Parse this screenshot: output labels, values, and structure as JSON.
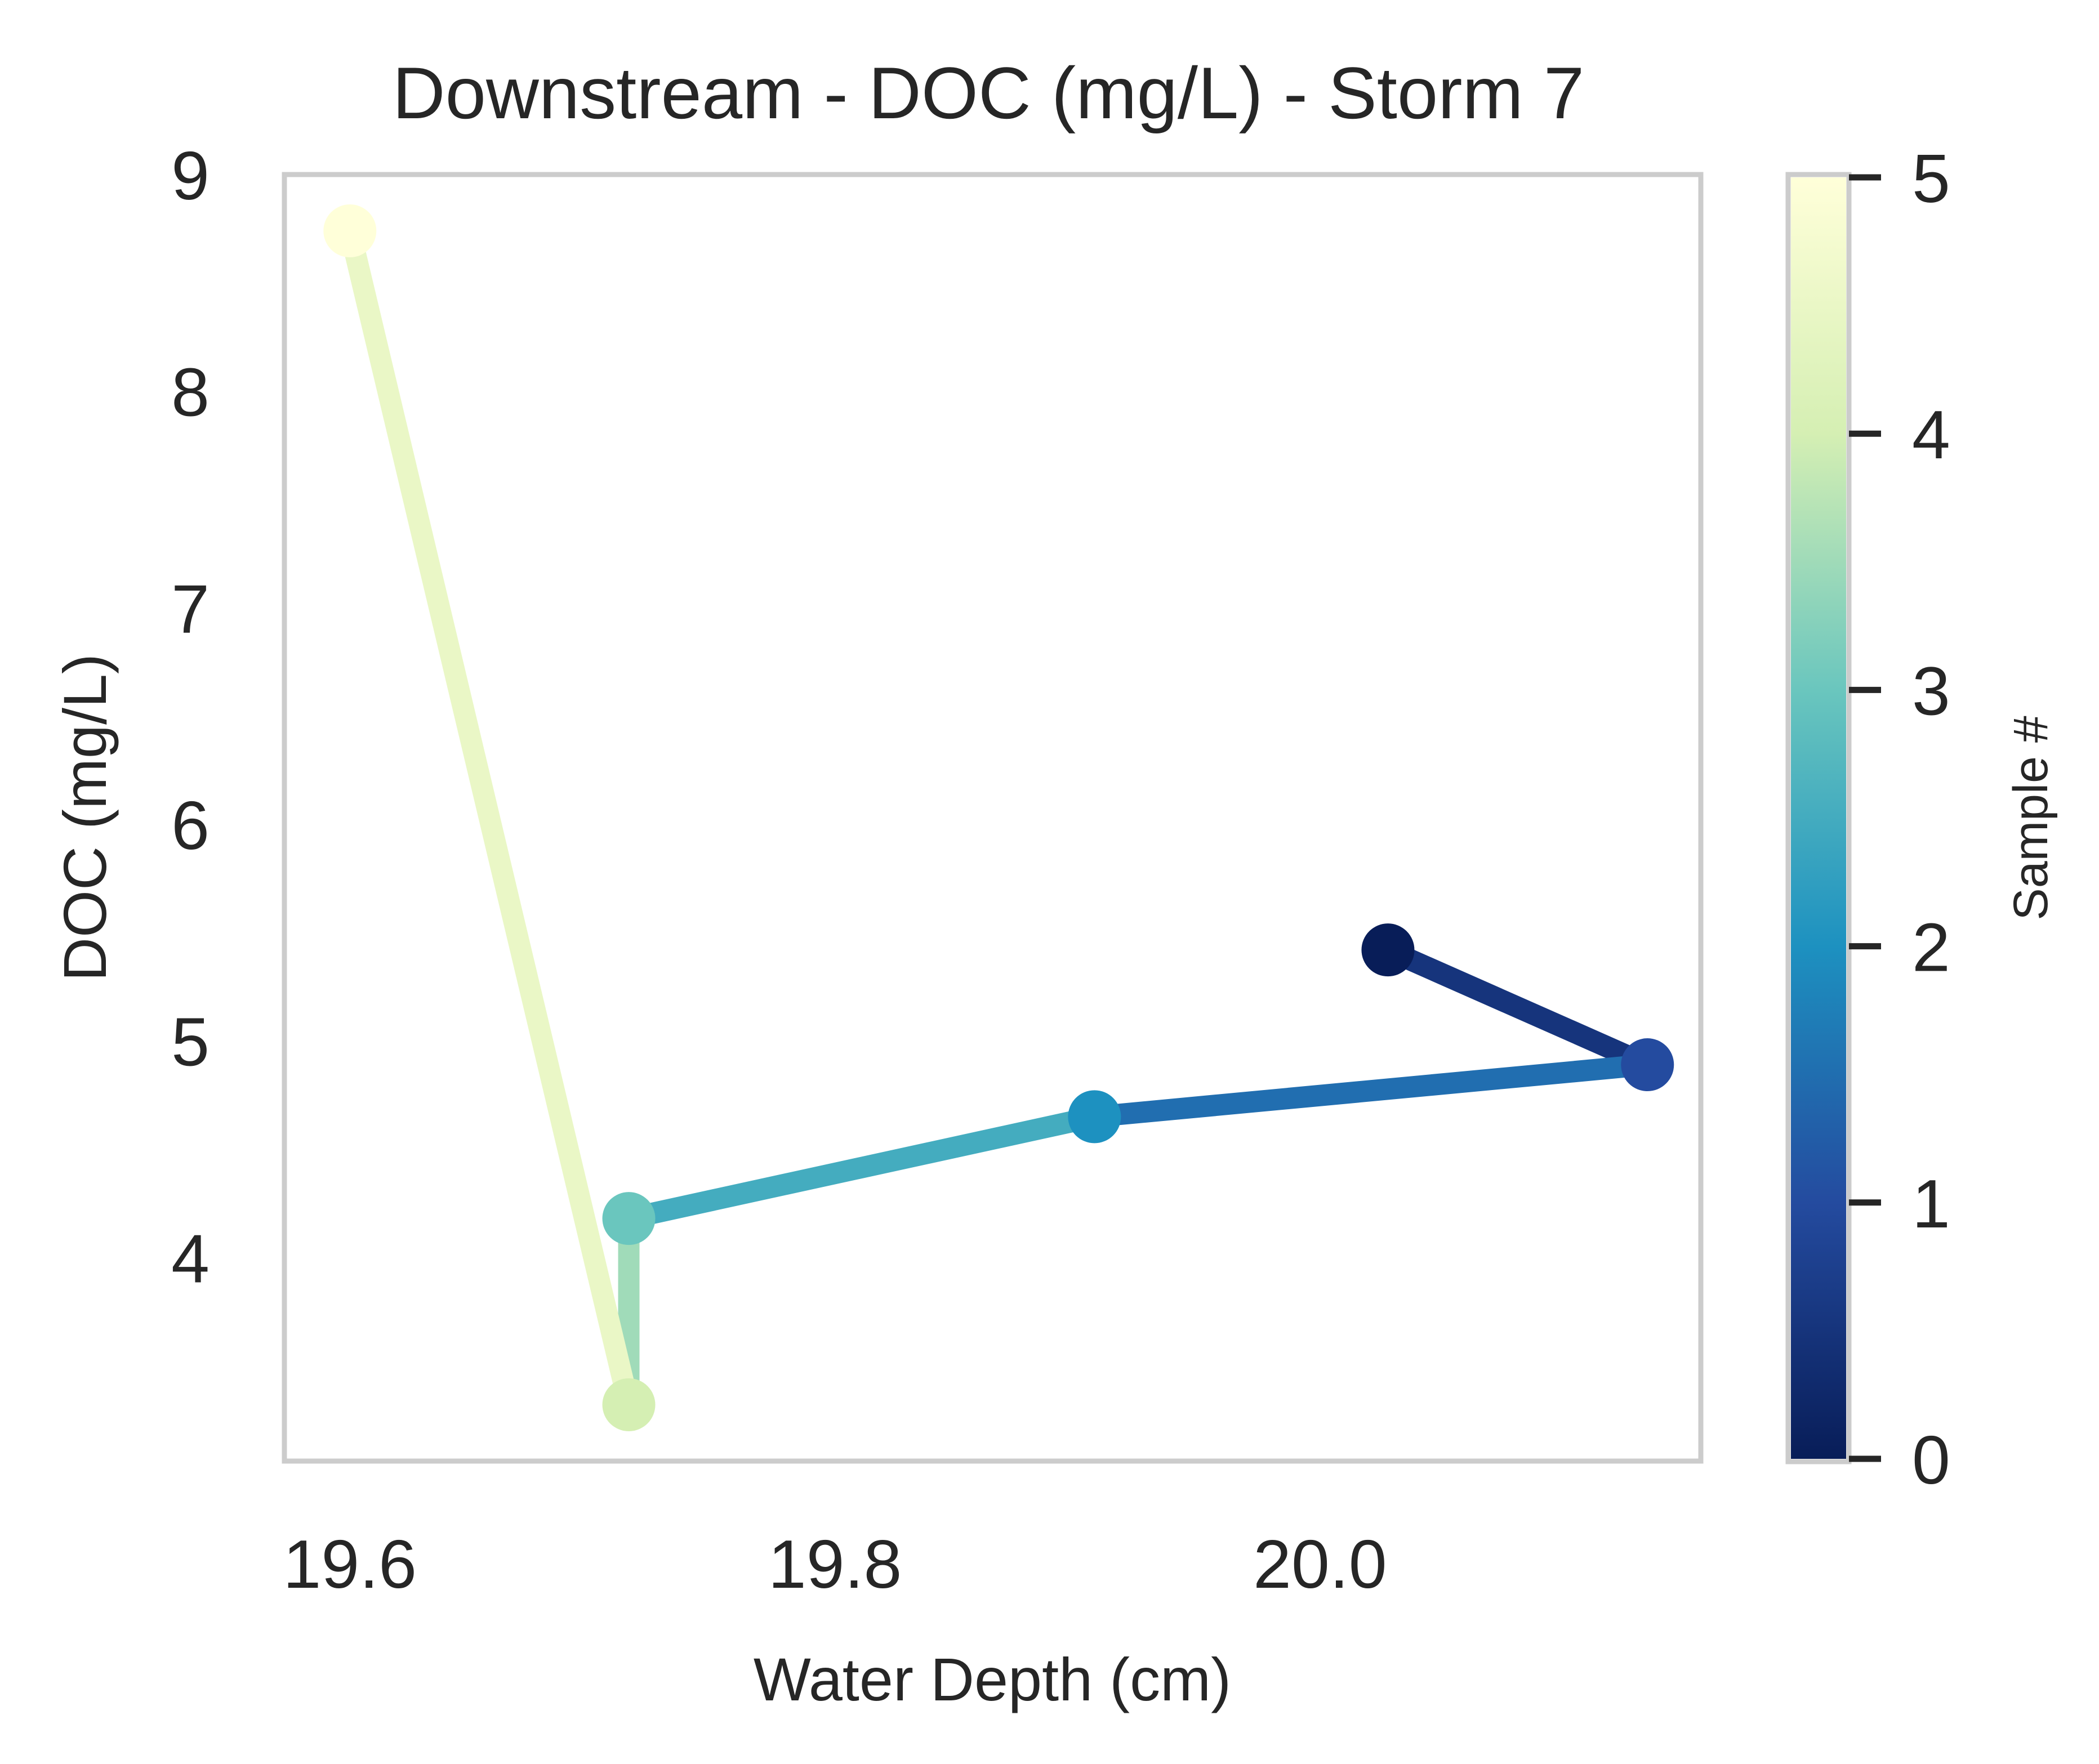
{
  "chart_data": {
    "type": "line",
    "title": "Downstream - DOC (mg/L) - Storm 7",
    "xlabel": "Water Depth (cm)",
    "ylabel": "DOC (mg/L)",
    "xlim": [
      19.573,
      20.157
    ],
    "ylim": [
      3.06,
      9.0
    ],
    "grid": false,
    "xticks": [
      19.6,
      19.8,
      20.0
    ],
    "xtick_labels": [
      "19.6",
      "19.8",
      "20.0"
    ],
    "yticks": [
      4,
      5,
      6,
      7,
      8,
      9
    ],
    "ytick_labels": [
      "4",
      "5",
      "6",
      "7",
      "8",
      "9"
    ],
    "series": [
      {
        "sample": [
          0,
          1,
          2,
          3,
          4,
          5
        ],
        "x": [
          20.028,
          20.135,
          19.907,
          19.715,
          19.715,
          19.6
        ],
        "y": [
          5.42,
          4.89,
          4.65,
          4.18,
          3.32,
          8.74
        ]
      }
    ],
    "colormap": {
      "name": "YlGnBu_r",
      "label": "Sample #",
      "range": [
        0,
        5
      ],
      "ticks": [
        0,
        1,
        2,
        3,
        4,
        5
      ],
      "tick_labels": [
        "0",
        "1",
        "2",
        "3",
        "4",
        "5"
      ],
      "stops": [
        {
          "value": 0.0,
          "color": "#081d58"
        },
        {
          "value": 1.0,
          "color": "#244b9f"
        },
        {
          "value": 2.0,
          "color": "#1d91c0"
        },
        {
          "value": 3.0,
          "color": "#6ac6be"
        },
        {
          "value": 4.0,
          "color": "#d5efb3"
        },
        {
          "value": 5.0,
          "color": "#ffffd9"
        }
      ]
    },
    "frame_color": "#cccccc"
  }
}
